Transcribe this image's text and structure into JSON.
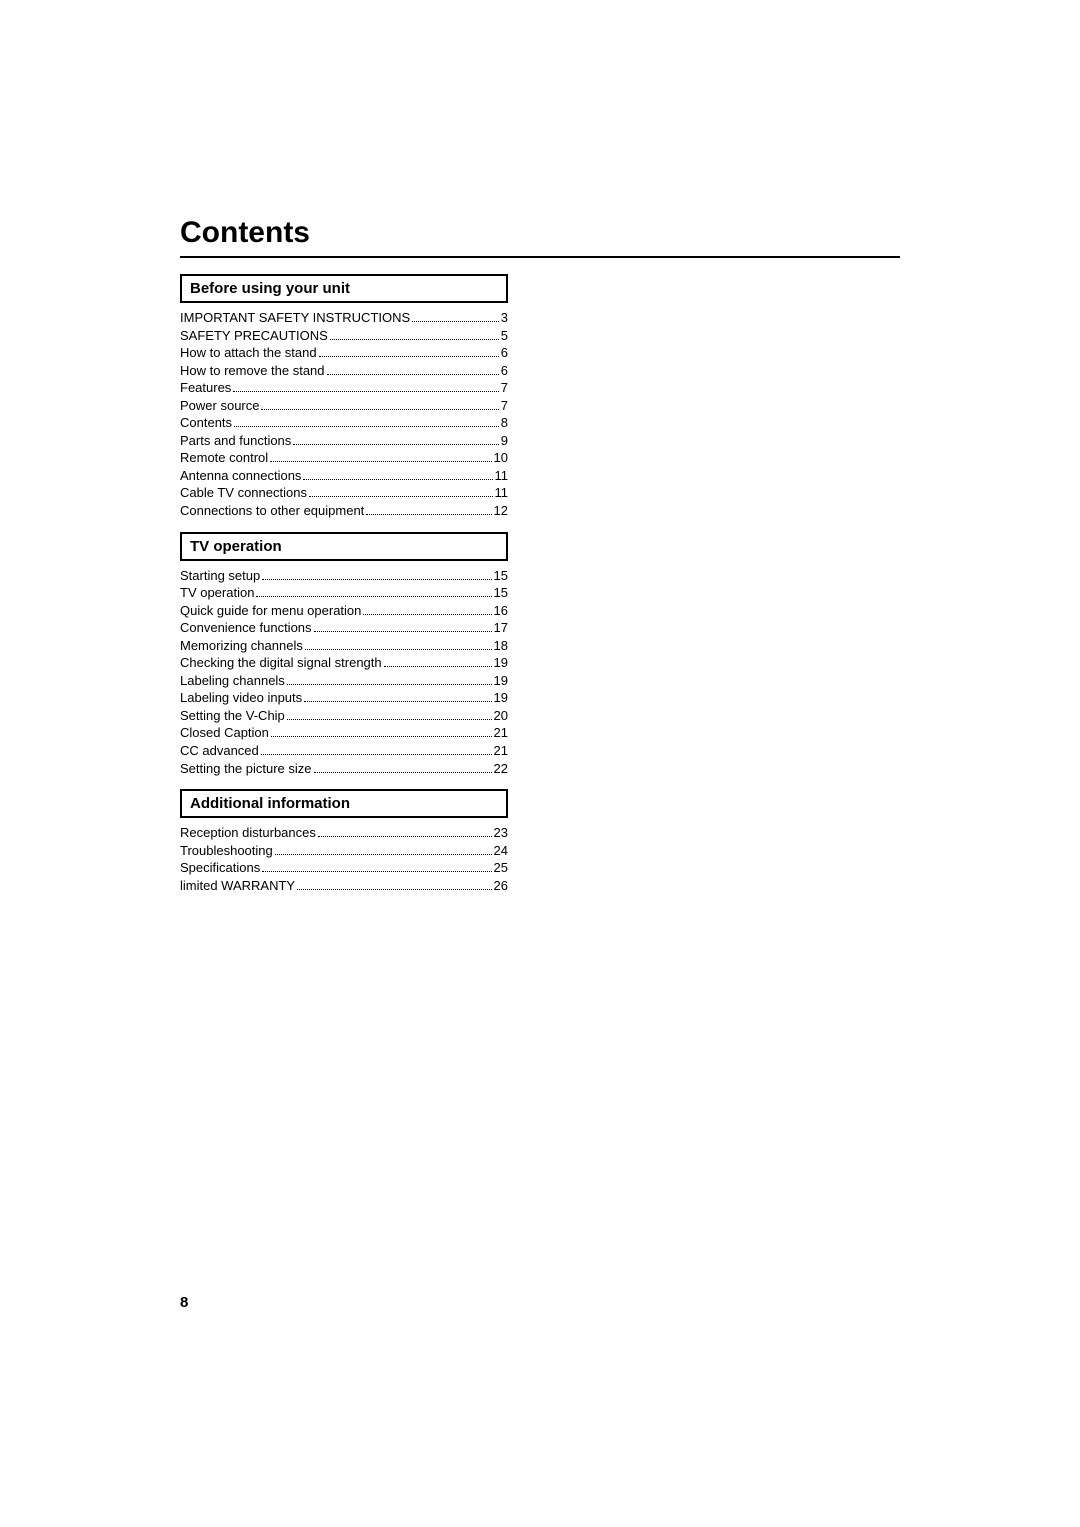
{
  "title": "Contents",
  "page_number": "8",
  "sections": [
    {
      "header": "Before using your unit",
      "entries": [
        {
          "label": "IMPORTANT SAFETY INSTRUCTIONS",
          "page": "3"
        },
        {
          "label": "SAFETY PRECAUTIONS",
          "page": "5"
        },
        {
          "label": "How to attach the stand",
          "page": "6"
        },
        {
          "label": "How to remove the stand",
          "page": "6"
        },
        {
          "label": "Features",
          "page": "7"
        },
        {
          "label": "Power source",
          "page": "7"
        },
        {
          "label": "Contents",
          "page": "8"
        },
        {
          "label": "Parts and functions",
          "page": "9"
        },
        {
          "label": "Remote control",
          "page": "10"
        },
        {
          "label": "Antenna connections",
          "page": "11"
        },
        {
          "label": "Cable TV connections",
          "page": "11"
        },
        {
          "label": "Connections to other equipment",
          "page": "12"
        }
      ]
    },
    {
      "header": "TV operation",
      "entries": [
        {
          "label": "Starting setup",
          "page": "15"
        },
        {
          "label": "TV operation",
          "page": "15"
        },
        {
          "label": "Quick guide for menu operation",
          "page": "16"
        },
        {
          "label": "Convenience functions",
          "page": "17"
        },
        {
          "label": "Memorizing channels",
          "page": "18"
        },
        {
          "label": "Checking the digital signal strength",
          "page": "19"
        },
        {
          "label": "Labeling channels",
          "page": "19"
        },
        {
          "label": "Labeling video inputs",
          "page": "19"
        },
        {
          "label": "Setting the V-Chip",
          "page": "20"
        },
        {
          "label": "Closed Caption",
          "page": "21"
        },
        {
          "label": "CC advanced",
          "page": "21"
        },
        {
          "label": "Setting the picture size",
          "page": "22"
        }
      ]
    },
    {
      "header": "Additional information",
      "entries": [
        {
          "label": "Reception disturbances",
          "page": "23"
        },
        {
          "label": "Troubleshooting",
          "page": "24"
        },
        {
          "label": "Specifications",
          "page": "25"
        },
        {
          "label": "limited WARRANTY",
          "page": "26"
        }
      ]
    }
  ]
}
